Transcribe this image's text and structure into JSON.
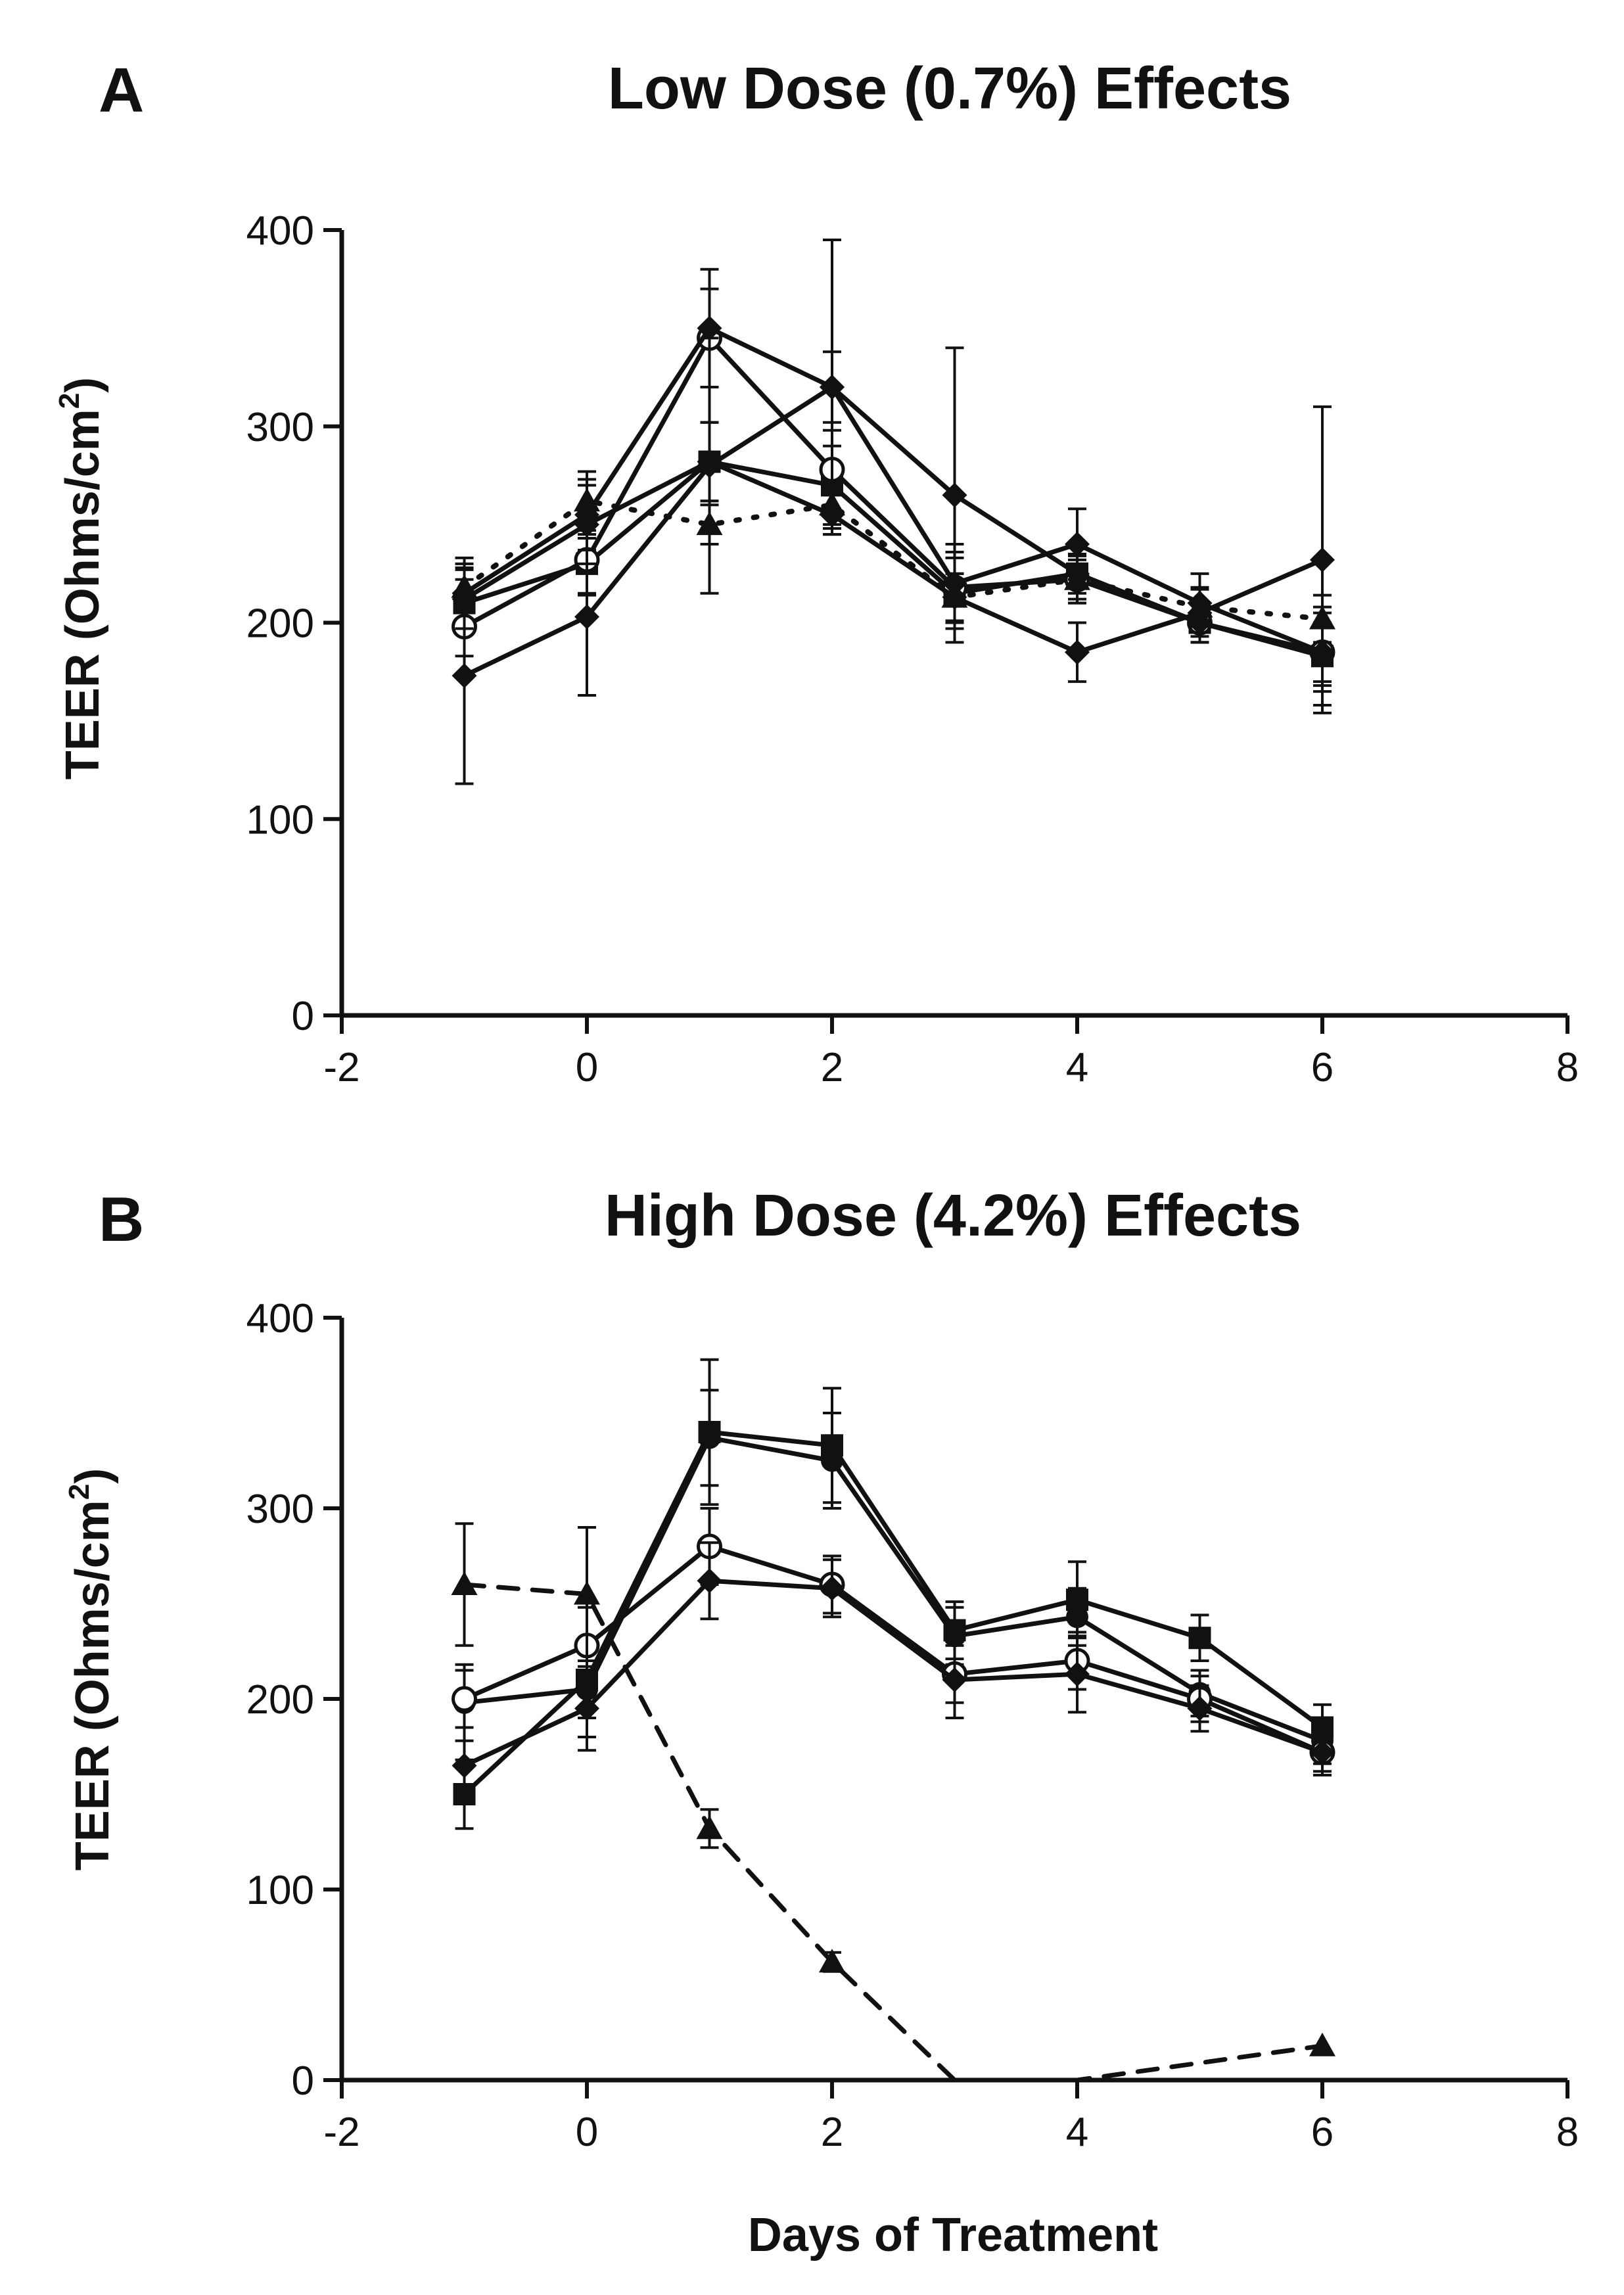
{
  "chart_data": [
    {
      "type": "line",
      "panel_label": "A",
      "title": "Low Dose (0.7%) Effects",
      "xlabel": "",
      "ylabel": "TEER (Ohms/cm",
      "ylabel_sup": "2",
      "ylabel_close": ")",
      "xlim": [
        -2,
        8
      ],
      "ylim": [
        0,
        400
      ],
      "xticks": [
        -2,
        0,
        2,
        4,
        6,
        8
      ],
      "yticks": [
        0,
        100,
        200,
        300,
        400
      ],
      "x": [
        -1,
        0,
        1,
        2,
        3,
        4,
        5,
        6
      ],
      "series": [
        {
          "name": "square",
          "marker": "square",
          "line": "solid",
          "values": [
            210,
            230,
            282,
            270,
            215,
            225,
            200,
            183
          ],
          "errors": [
            12,
            15,
            20,
            20,
            18,
            10,
            10,
            15
          ]
        },
        {
          "name": "open-circle",
          "marker": "open-circle",
          "line": "solid",
          "values": [
            198,
            232,
            345,
            278,
            218,
            222,
            200,
            185
          ],
          "errors": [
            15,
            18,
            25,
            20,
            18,
            12,
            10,
            15
          ]
        },
        {
          "name": "diamond-a",
          "marker": "diamond",
          "line": "solid",
          "values": [
            215,
            255,
            350,
            320,
            265,
            225,
            200,
            183
          ],
          "errors": [
            18,
            18,
            30,
            75,
            75,
            15,
            10,
            25
          ]
        },
        {
          "name": "diamond-b",
          "marker": "diamond",
          "line": "solid",
          "values": [
            173,
            203,
            280,
            320,
            220,
            240,
            210,
            185
          ],
          "errors": [
            55,
            40,
            65,
            18,
            20,
            18,
            15,
            20
          ]
        },
        {
          "name": "triangle",
          "marker": "triangle",
          "line": "dotted",
          "values": [
            218,
            262,
            250,
            260,
            213,
            222,
            208,
            202
          ],
          "errors": [
            12,
            15,
            10,
            12,
            12,
            10,
            10,
            12
          ]
        },
        {
          "name": "star",
          "marker": "diamond",
          "line": "solid",
          "values": [
            212,
            250,
            282,
            255,
            213,
            185,
            205,
            232
          ],
          "errors": [
            15,
            20,
            20,
            10,
            12,
            15,
            12,
            78
          ]
        }
      ]
    },
    {
      "type": "line",
      "panel_label": "B",
      "title": "High Dose (4.2%) Effects",
      "xlabel": "Days of Treatment",
      "ylabel": "TEER (Ohms/cm",
      "ylabel_sup": "2",
      "ylabel_close": ")",
      "xlim": [
        -2,
        8
      ],
      "ylim": [
        0,
        400
      ],
      "xticks": [
        -2,
        0,
        2,
        4,
        6,
        8
      ],
      "yticks": [
        0,
        100,
        200,
        300,
        400
      ],
      "x": [
        -1,
        0,
        1,
        2,
        3,
        4,
        5,
        6
      ],
      "series": [
        {
          "name": "square",
          "marker": "square",
          "line": "solid",
          "values": [
            150,
            210,
            340,
            333,
            236,
            252,
            232,
            185
          ],
          "errors": [
            18,
            20,
            38,
            30,
            15,
            20,
            12,
            12
          ]
        },
        {
          "name": "filled-circle",
          "marker": "filled-circle",
          "line": "solid",
          "values": [
            198,
            205,
            337,
            325,
            233,
            243,
            203,
            178
          ],
          "errors": [
            20,
            25,
            25,
            25,
            15,
            15,
            12,
            12
          ]
        },
        {
          "name": "open-circle",
          "marker": "open-circle",
          "line": "solid",
          "values": [
            200,
            228,
            280,
            260,
            213,
            220,
            200,
            172
          ],
          "errors": [
            15,
            20,
            20,
            15,
            15,
            15,
            12,
            10
          ]
        },
        {
          "name": "diamond",
          "marker": "diamond",
          "line": "solid",
          "values": [
            165,
            195,
            262,
            258,
            210,
            213,
            195,
            172
          ],
          "errors": [
            20,
            22,
            20,
            15,
            20,
            20,
            12,
            12
          ]
        },
        {
          "name": "triangle-dashed",
          "marker": "triangle",
          "line": "dashed",
          "x": [
            -1,
            0,
            1,
            2,
            3,
            4,
            6
          ],
          "values": [
            260,
            255,
            132,
            62,
            0,
            0,
            18
          ],
          "errors": [
            32,
            35,
            10,
            5,
            0,
            0,
            0
          ],
          "markers_shown": [
            true,
            true,
            true,
            true,
            false,
            false,
            true
          ]
        }
      ]
    }
  ]
}
